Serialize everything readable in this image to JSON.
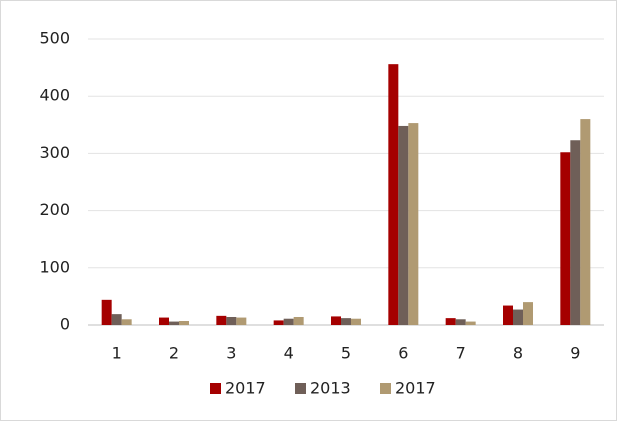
{
  "chart_data": {
    "type": "bar",
    "categories": [
      "1",
      "2",
      "3",
      "4",
      "5",
      "6",
      "7",
      "8",
      "9"
    ],
    "series": [
      {
        "name": "2017",
        "color": "#a50000",
        "values": [
          44,
          13,
          16,
          8,
          15,
          456,
          12,
          34,
          302
        ]
      },
      {
        "name": "2013",
        "color": "#6f5f58",
        "values": [
          19,
          6,
          14,
          11,
          12,
          348,
          10,
          27,
          323
        ]
      },
      {
        "name": "2017",
        "color": "#b09a72",
        "values": [
          10,
          7,
          13,
          14,
          11,
          353,
          6,
          40,
          360
        ]
      }
    ],
    "ylim": [
      0,
      500
    ],
    "yticks": [
      0,
      100,
      200,
      300,
      400,
      500
    ],
    "grid": true,
    "legend": "bottom"
  }
}
